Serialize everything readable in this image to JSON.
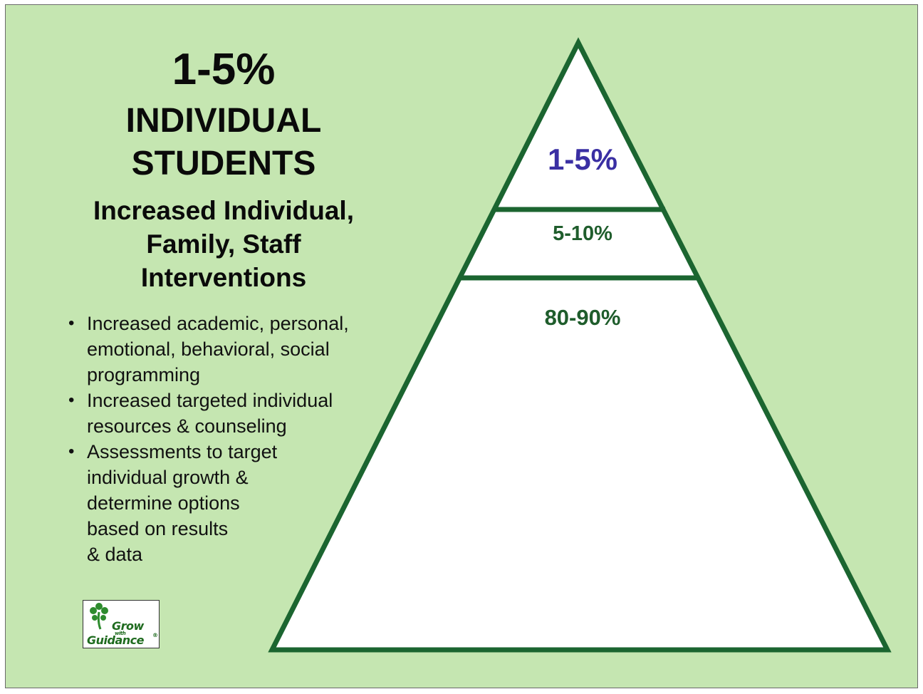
{
  "left_panel": {
    "percent": "1-5%",
    "heading_line1": "INDIVIDUAL",
    "heading_line2": "STUDENTS",
    "subheading_lines": [
      "Increased Individual,",
      "Family, Staff",
      "Interventions"
    ],
    "bullets": [
      {
        "lines": [
          "Increased academic, personal,",
          "emotional, behavioral, social",
          "programming"
        ]
      },
      {
        "lines": [
          "Increased targeted individual",
          "resources & counseling"
        ]
      },
      {
        "lines": [
          "Assessments to target",
          "individual growth &",
          "determine options",
          "based on results",
          "& data"
        ]
      }
    ]
  },
  "pyramid": {
    "tiers": [
      {
        "label": "1-5%",
        "color": "#3a2fa3"
      },
      {
        "label": "5-10%",
        "color": "#1f5d2c"
      },
      {
        "label": "80-90%",
        "color": "#1f5d2c"
      }
    ],
    "outline_color": "#1b6530",
    "fill_color": "#ffffff"
  },
  "logo": {
    "line1": "Grow",
    "line2": "with",
    "line3": "Guidance",
    "mark": "®"
  },
  "colors": {
    "background": "#c5e6b1",
    "text": "#0a0a0a"
  }
}
